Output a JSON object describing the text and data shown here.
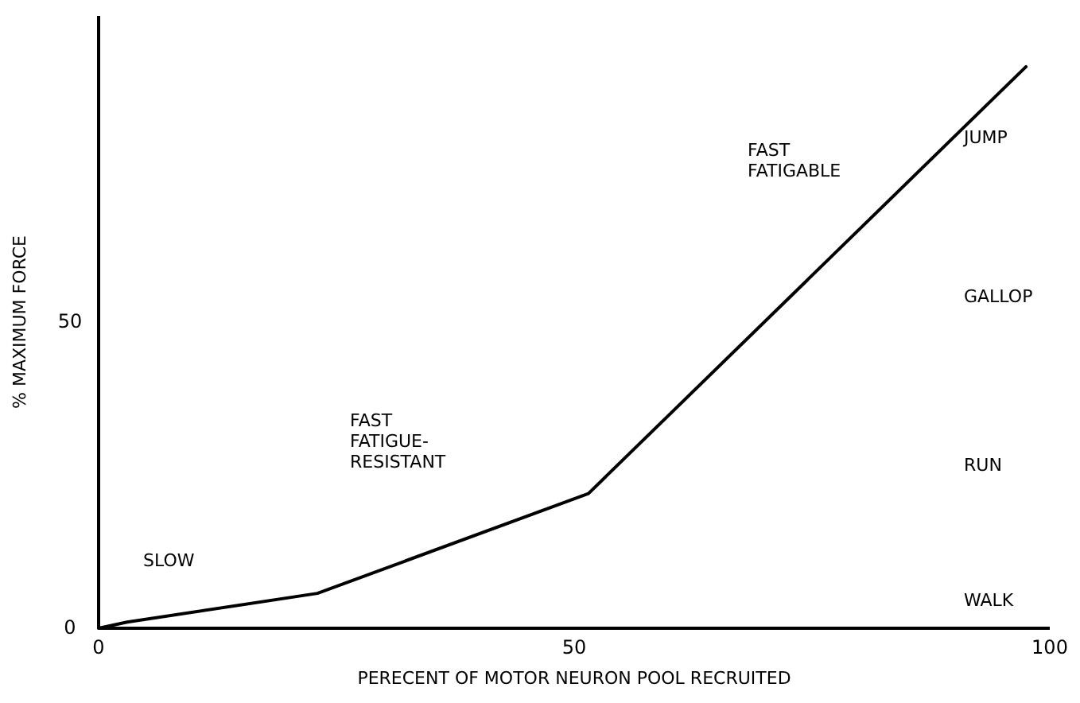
{
  "chart_data": {
    "type": "line",
    "xlabel": "PERECENT OF MOTOR NEURON POOL RECRUITED",
    "ylabel": "% MAXIMUM FORCE",
    "x": [
      0,
      3,
      23,
      51.5,
      97.5
    ],
    "series": [
      {
        "color": "#000000",
        "values": [
          0,
          1,
          5.7,
          22,
          91.7
        ]
      }
    ],
    "xlim": [
      0,
      100
    ],
    "xticks": [
      0,
      50,
      100
    ],
    "ylim": [
      0,
      100
    ],
    "yticks": [
      0,
      50
    ],
    "grid": false,
    "marker": "none",
    "line_style": "solid",
    "annotations": [
      "SLOW",
      "FAST\nFATIGUE-\nRESISTANT",
      "FAST\nFATIGABLE",
      "JUMP",
      "GALLOP",
      "RUN",
      "WALK"
    ]
  }
}
